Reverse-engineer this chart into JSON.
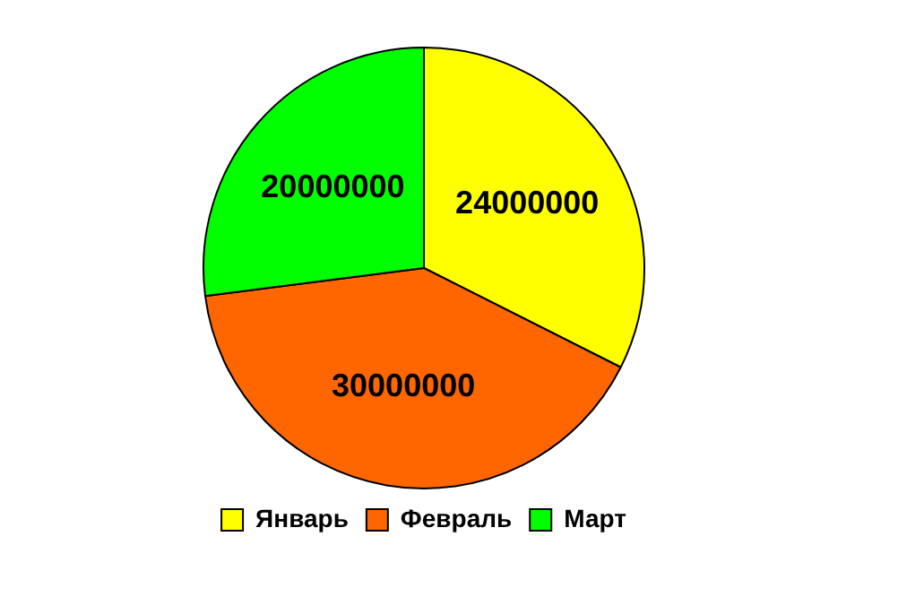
{
  "chart_data": {
    "type": "pie",
    "categories": [
      "Январь",
      "Февраль",
      "Март"
    ],
    "values": [
      24000000,
      30000000,
      20000000
    ],
    "colors": [
      "#ffff00",
      "#ff6600",
      "#00ff00"
    ],
    "data_labels": true,
    "legend": "bottom"
  }
}
